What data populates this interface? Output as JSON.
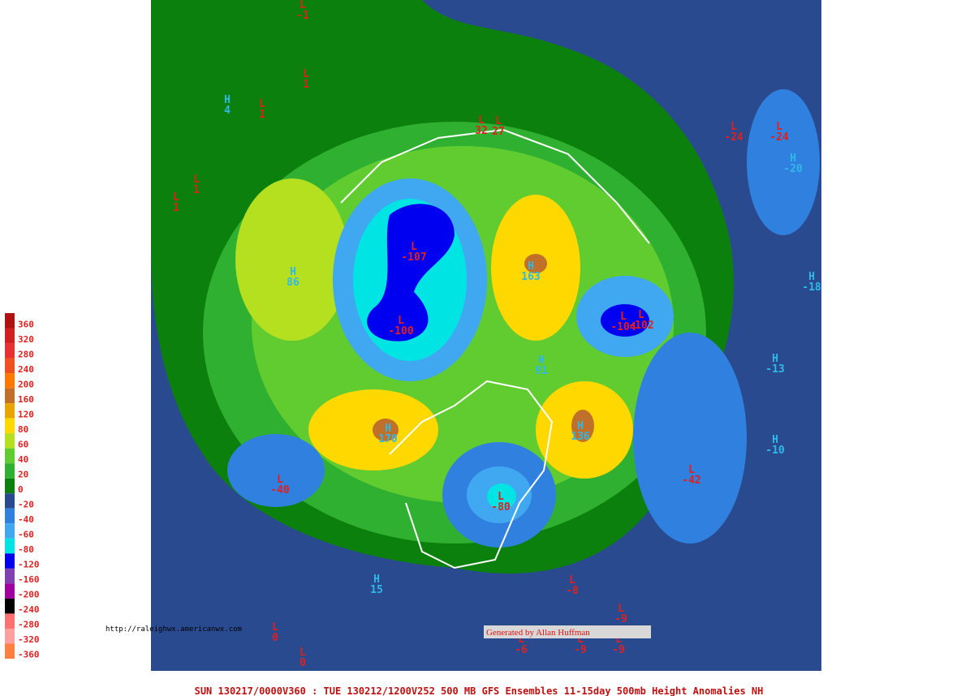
{
  "legend": [
    {
      "label": 360,
      "color": "#b01010"
    },
    {
      "label": 320,
      "color": "#d02020"
    },
    {
      "label": 280,
      "color": "#e83030"
    },
    {
      "label": 240,
      "color": "#f05020"
    },
    {
      "label": 200,
      "color": "#ff7800"
    },
    {
      "label": 160,
      "color": "#c07028"
    },
    {
      "label": 120,
      "color": "#e8a400"
    },
    {
      "label": 80,
      "color": "#ffd800"
    },
    {
      "label": 60,
      "color": "#b4e020"
    },
    {
      "label": 40,
      "color": "#60cc30"
    },
    {
      "label": 20,
      "color": "#30b030"
    },
    {
      "label": 0,
      "color": "#0c800c"
    },
    {
      "label": -20,
      "color": "#2a4a90"
    },
    {
      "label": -40,
      "color": "#3080e0"
    },
    {
      "label": -60,
      "color": "#40a8f0"
    },
    {
      "label": -80,
      "color": "#00e4e4"
    },
    {
      "label": -120,
      "color": "#0000f0"
    },
    {
      "label": -160,
      "color": "#8040b0"
    },
    {
      "label": -200,
      "color": "#a000a0"
    },
    {
      "label": -240,
      "color": "#000000"
    },
    {
      "label": -280,
      "color": "#ff7070"
    },
    {
      "label": -320,
      "color": "#ffa0a0"
    },
    {
      "label": -360,
      "color": "#ff8040"
    }
  ],
  "centers": [
    {
      "kind": "L",
      "value": -1
    },
    {
      "kind": "L",
      "value": 1
    },
    {
      "kind": "H",
      "value": 4
    },
    {
      "kind": "L",
      "value": 1
    },
    {
      "kind": "L",
      "value": 1
    },
    {
      "kind": "L",
      "value": 1
    },
    {
      "kind": "H",
      "value": 86
    },
    {
      "kind": "L",
      "value": -107
    },
    {
      "kind": "L",
      "value": -100
    },
    {
      "kind": "H",
      "value": 163
    },
    {
      "kind": "L",
      "value": -104
    },
    {
      "kind": "L",
      "value": -102
    },
    {
      "kind": "H",
      "value": 91
    },
    {
      "kind": "H",
      "value": 170
    },
    {
      "kind": "H",
      "value": 136
    },
    {
      "kind": "L",
      "value": -40
    },
    {
      "kind": "L",
      "value": -80
    },
    {
      "kind": "L",
      "value": -42
    },
    {
      "kind": "H",
      "value": -10
    },
    {
      "kind": "H",
      "value": -13
    },
    {
      "kind": "H",
      "value": -18
    },
    {
      "kind": "L",
      "value": -24
    },
    {
      "kind": "L",
      "value": -24
    },
    {
      "kind": "H",
      "value": -20
    },
    {
      "kind": "L",
      "value": 32
    },
    {
      "kind": "L",
      "value": 27
    },
    {
      "kind": "H",
      "value": 15
    },
    {
      "kind": "L",
      "value": -8
    },
    {
      "kind": "L",
      "value": -9
    },
    {
      "kind": "L",
      "value": 0
    },
    {
      "kind": "L",
      "value": 0
    },
    {
      "kind": "L",
      "value": -6
    },
    {
      "kind": "L",
      "value": -9
    },
    {
      "kind": "L",
      "value": -9
    }
  ],
  "url": "http://raleighwx.americanwx.com",
  "credit": "Generated by Allan Huffman",
  "footer": "SUN 130217/0000V360 : TUE 130212/1200V252  500 MB GFS Ensembles 11-15day 500mb Height Anomalies NH"
}
